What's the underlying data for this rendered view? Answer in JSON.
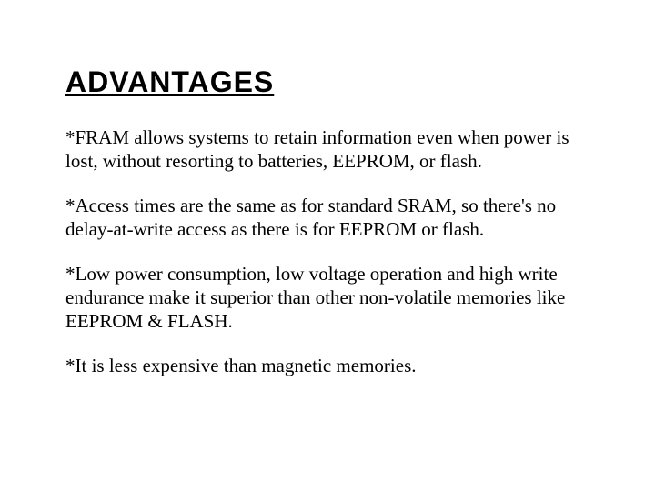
{
  "background_color": "#ffffff",
  "text_color": "#000000",
  "title": {
    "text": "ADVANTAGES",
    "font_family": "Comic Sans MS",
    "font_size_pt": 24,
    "font_weight": "bold",
    "underline": true
  },
  "body": {
    "font_family": "Times New Roman",
    "font_size_pt": 16,
    "paragraphs": [
      "*FRAM allows systems to retain information even when power is lost, without resorting to batteries, EEPROM, or flash.",
      "*Access times are the same as for standard SRAM, so there's no delay-at-write access as there is for EEPROM or flash.",
      "*Low power consumption, low voltage operation and high write endurance make it superior than other non-volatile memories like EEPROM & FLASH.",
      "*It is less expensive than magnetic memories."
    ]
  }
}
